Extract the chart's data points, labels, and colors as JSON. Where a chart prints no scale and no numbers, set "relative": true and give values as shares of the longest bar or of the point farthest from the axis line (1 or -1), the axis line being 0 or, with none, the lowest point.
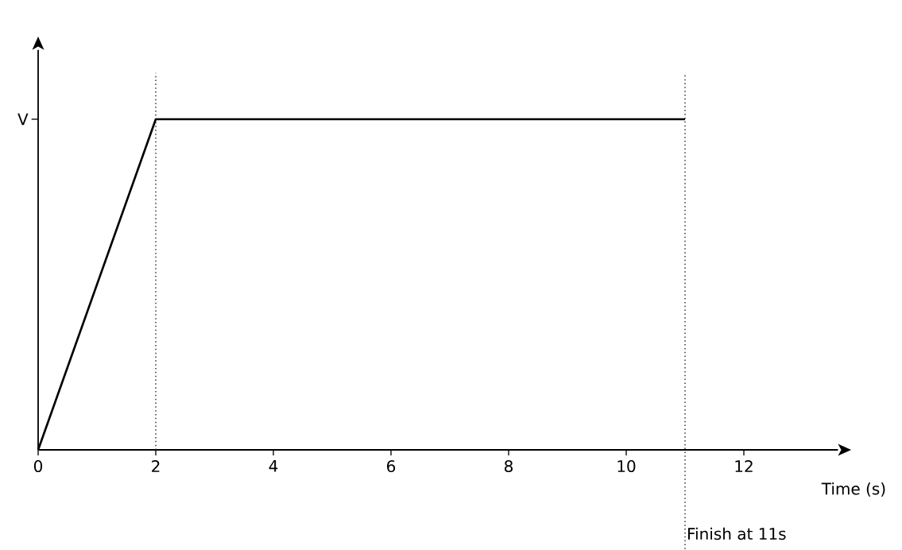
{
  "chart_data": {
    "type": "line",
    "relative": true,
    "xlabel": "Time (s)",
    "xlim": [
      0,
      13.6
    ],
    "xticks": [
      0,
      2,
      4,
      6,
      8,
      10,
      12
    ],
    "series": [
      {
        "color": "#000000",
        "x": [
          0,
          2,
          11
        ],
        "values": [
          0,
          1,
          1
        ]
      }
    ],
    "marker": "none",
    "line_style": "solid",
    "ref_lines": [
      {
        "axis": "x",
        "value": 2,
        "line_style": "dotted",
        "color": "#333333"
      },
      {
        "axis": "x",
        "value": 11,
        "label": "Finish at 11s",
        "line_style": "dotted",
        "color": "#333333"
      }
    ],
    "annotations": [
      "V"
    ]
  }
}
